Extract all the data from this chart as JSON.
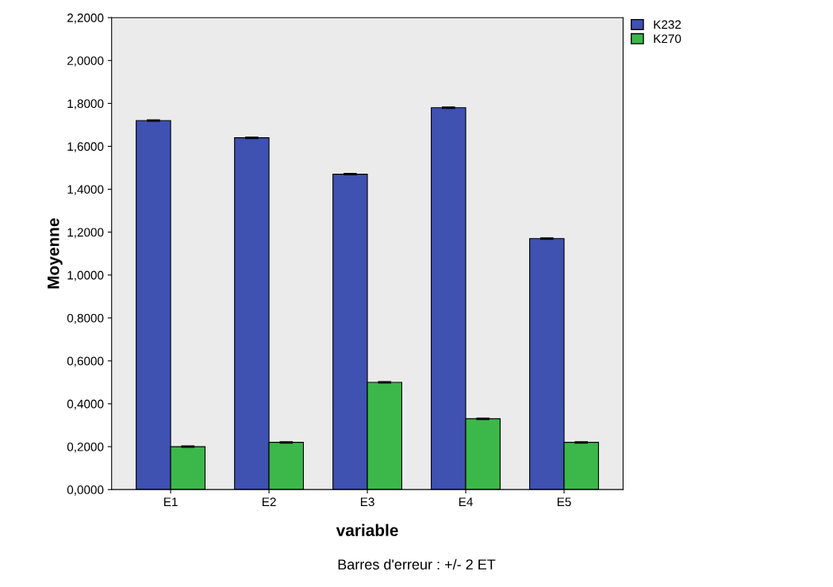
{
  "chart_data": {
    "type": "bar",
    "xlabel": "variable",
    "ylabel": "Moyenne",
    "categories": [
      "E1",
      "E2",
      "E3",
      "E4",
      "E5"
    ],
    "series": [
      {
        "name": "K232",
        "color": "#3f51b1",
        "values": [
          1.72,
          1.64,
          1.47,
          1.78,
          1.17
        ],
        "errors": [
          0.003,
          0.003,
          0.003,
          0.003,
          0.003
        ]
      },
      {
        "name": "K270",
        "color": "#3cb84a",
        "values": [
          0.2,
          0.22,
          0.5,
          0.33,
          0.22
        ],
        "errors": [
          0.003,
          0.003,
          0.003,
          0.003,
          0.003
        ]
      }
    ],
    "ylim": [
      0,
      2.2
    ],
    "yticks": [
      {
        "value": 0,
        "label": "0,0000"
      },
      {
        "value": 0.2,
        "label": "0,2000"
      },
      {
        "value": 0.4,
        "label": "0,4000"
      },
      {
        "value": 0.6,
        "label": "0,6000"
      },
      {
        "value": 0.8,
        "label": "0,8000"
      },
      {
        "value": 1.0,
        "label": "1,0000"
      },
      {
        "value": 1.2,
        "label": "1,2000"
      },
      {
        "value": 1.4,
        "label": "1,4000"
      },
      {
        "value": 1.6,
        "label": "1,6000"
      },
      {
        "value": 1.8,
        "label": "1,8000"
      },
      {
        "value": 2.0,
        "label": "2,0000"
      },
      {
        "value": 2.2,
        "label": "2,2000"
      }
    ],
    "grid": false,
    "legend": "top right",
    "annotations": [
      "Barres d'erreur : +/- 2 ET"
    ]
  }
}
